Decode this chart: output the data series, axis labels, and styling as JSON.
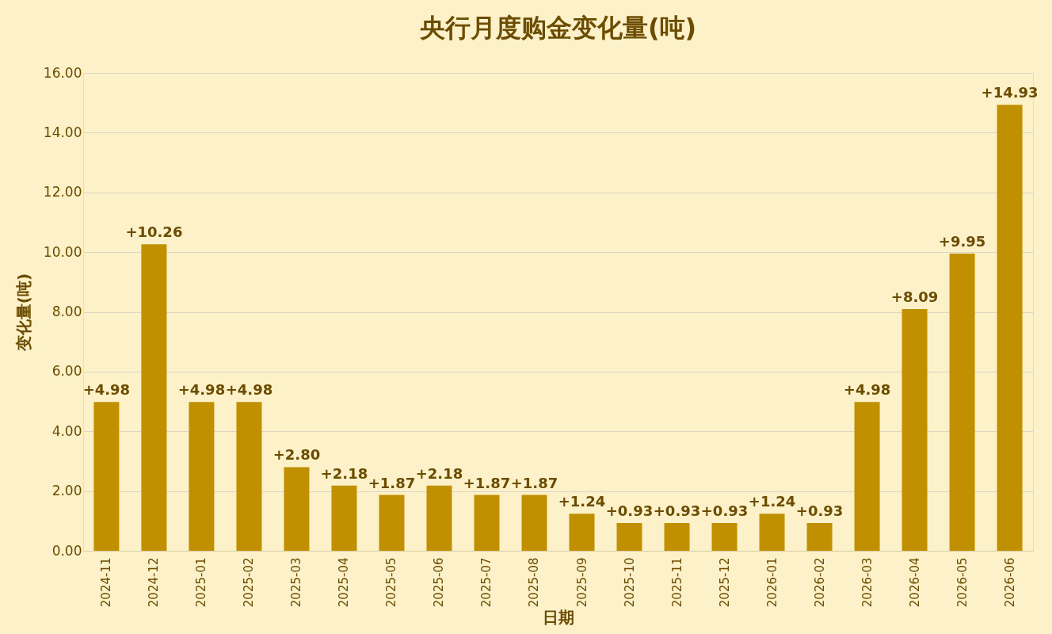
{
  "chart_data": {
    "type": "bar",
    "title": "央行月度购金变化量(吨)",
    "xlabel": "日期",
    "ylabel": "变化量(吨)",
    "categories": [
      "2024-11",
      "2024-12",
      "2025-01",
      "2025-02",
      "2025-03",
      "2025-04",
      "2025-05",
      "2025-06",
      "2025-07",
      "2025-08",
      "2025-09",
      "2025-10",
      "2025-11",
      "2025-12",
      "2026-01",
      "2026-02",
      "2026-03",
      "2026-04",
      "2026-05",
      "2026-06"
    ],
    "values": [
      4.98,
      10.26,
      4.98,
      4.98,
      2.8,
      2.18,
      1.87,
      2.18,
      1.87,
      1.87,
      1.24,
      0.93,
      0.93,
      0.93,
      1.24,
      0.93,
      4.98,
      8.09,
      9.95,
      14.93
    ],
    "value_labels": [
      "+4.98",
      "+10.26",
      "+4.98",
      "+4.98",
      "+2.80",
      "+2.18",
      "+1.87",
      "+2.18",
      "+1.87",
      "+1.87",
      "+1.24",
      "+0.93",
      "+0.93",
      "+0.93",
      "+1.24",
      "+0.93",
      "+4.98",
      "+8.09",
      "+9.95",
      "+14.93"
    ],
    "color": "#c09000",
    "ylim": [
      0,
      16
    ],
    "yticks": [
      {
        "value": 0,
        "label": "0.00"
      },
      {
        "value": 2,
        "label": "2.00"
      },
      {
        "value": 4,
        "label": "4.00"
      },
      {
        "value": 6,
        "label": "6.00"
      },
      {
        "value": 8,
        "label": "8.00"
      },
      {
        "value": 10,
        "label": "10.00"
      },
      {
        "value": 12,
        "label": "12.00"
      },
      {
        "value": 14,
        "label": "14.00"
      },
      {
        "value": 16,
        "label": "16.00"
      }
    ],
    "grid": "y"
  }
}
